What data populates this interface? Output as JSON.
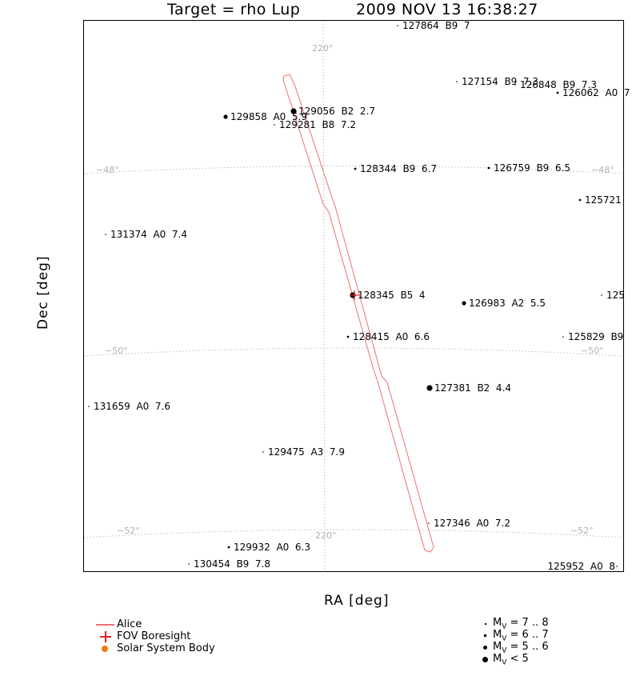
{
  "header": {
    "target": "Target = rho Lup",
    "datetime": "2009 NOV 13 16:38:27"
  },
  "axes": {
    "xlabel": "RA [deg]",
    "ylabel": "Dec [deg]"
  },
  "grid_labels": {
    "ra_top": "220°",
    "ra_bottom": "220°",
    "dec_48_left": "−48°",
    "dec_48_right": "−48°",
    "dec_50_left": "−50°",
    "dec_50_right": "−50°",
    "dec_52_left": "−52°",
    "dec_52_right": "−52°"
  },
  "stars": [
    {
      "label": "127864  B9  7",
      "mag_class": "7-8"
    },
    {
      "label": "127154  B9  7.3",
      "mag_class": "7-8"
    },
    {
      "label": "126848  B9  7.3",
      "mag_class": "7-8"
    },
    {
      "label": "126062  A0  7",
      "mag_class": "6-7"
    },
    {
      "label": "129858  A0  5.9",
      "mag_class": "5-6"
    },
    {
      "label": "129056  B2  2.7",
      "mag_class": "<5"
    },
    {
      "label": "129281  B8  7.2",
      "mag_class": "7-8"
    },
    {
      "label": "128344  B9  6.7",
      "mag_class": "6-7"
    },
    {
      "label": "126759  B9  6.5",
      "mag_class": "6-7"
    },
    {
      "label": "125721",
      "mag_class": "6-7"
    },
    {
      "label": "131374  A0  7.4",
      "mag_class": "7-8"
    },
    {
      "label": "128345  B5  4",
      "mag_class": "<5"
    },
    {
      "label": "126983  A2  5.5",
      "mag_class": "5-6"
    },
    {
      "label": "125",
      "mag_class": "7-8"
    },
    {
      "label": "128415  A0  6.6",
      "mag_class": "6-7"
    },
    {
      "label": "125829  B9",
      "mag_class": "7-8"
    },
    {
      "label": "127381  B2  4.4",
      "mag_class": "<5"
    },
    {
      "label": "131659  A0  7.6",
      "mag_class": "7-8"
    },
    {
      "label": "129475  A3  7.9",
      "mag_class": "7-8"
    },
    {
      "label": "127346  A0  7.2",
      "mag_class": "7-8"
    },
    {
      "label": "129932  A0  6.3",
      "mag_class": "6-7"
    },
    {
      "label": "130454  B9  7.8",
      "mag_class": "7-8"
    },
    {
      "label": "125952  A0  8",
      "mag_class": "7-8"
    }
  ],
  "legend": {
    "items": [
      {
        "label": "Alice",
        "color": "#f07070",
        "symbol": "line"
      },
      {
        "label": "FOV Boresight",
        "color": "#e02020",
        "symbol": "cross"
      },
      {
        "label": "Solar System Body",
        "color": "#f07a10",
        "symbol": "dot"
      }
    ],
    "magnitudes": [
      {
        "label": "M",
        "sub": "V",
        "range": " = 7 .. 8"
      },
      {
        "label": "M",
        "sub": "V",
        "range": " = 6 .. 7"
      },
      {
        "label": "M",
        "sub": "V",
        "range": " = 5 .. 6"
      },
      {
        "label": "M",
        "sub": "V",
        "range": " < 5"
      }
    ]
  },
  "colors": {
    "fov": "#f07070",
    "grid": "#a0a0a0",
    "frame": "#000000"
  }
}
